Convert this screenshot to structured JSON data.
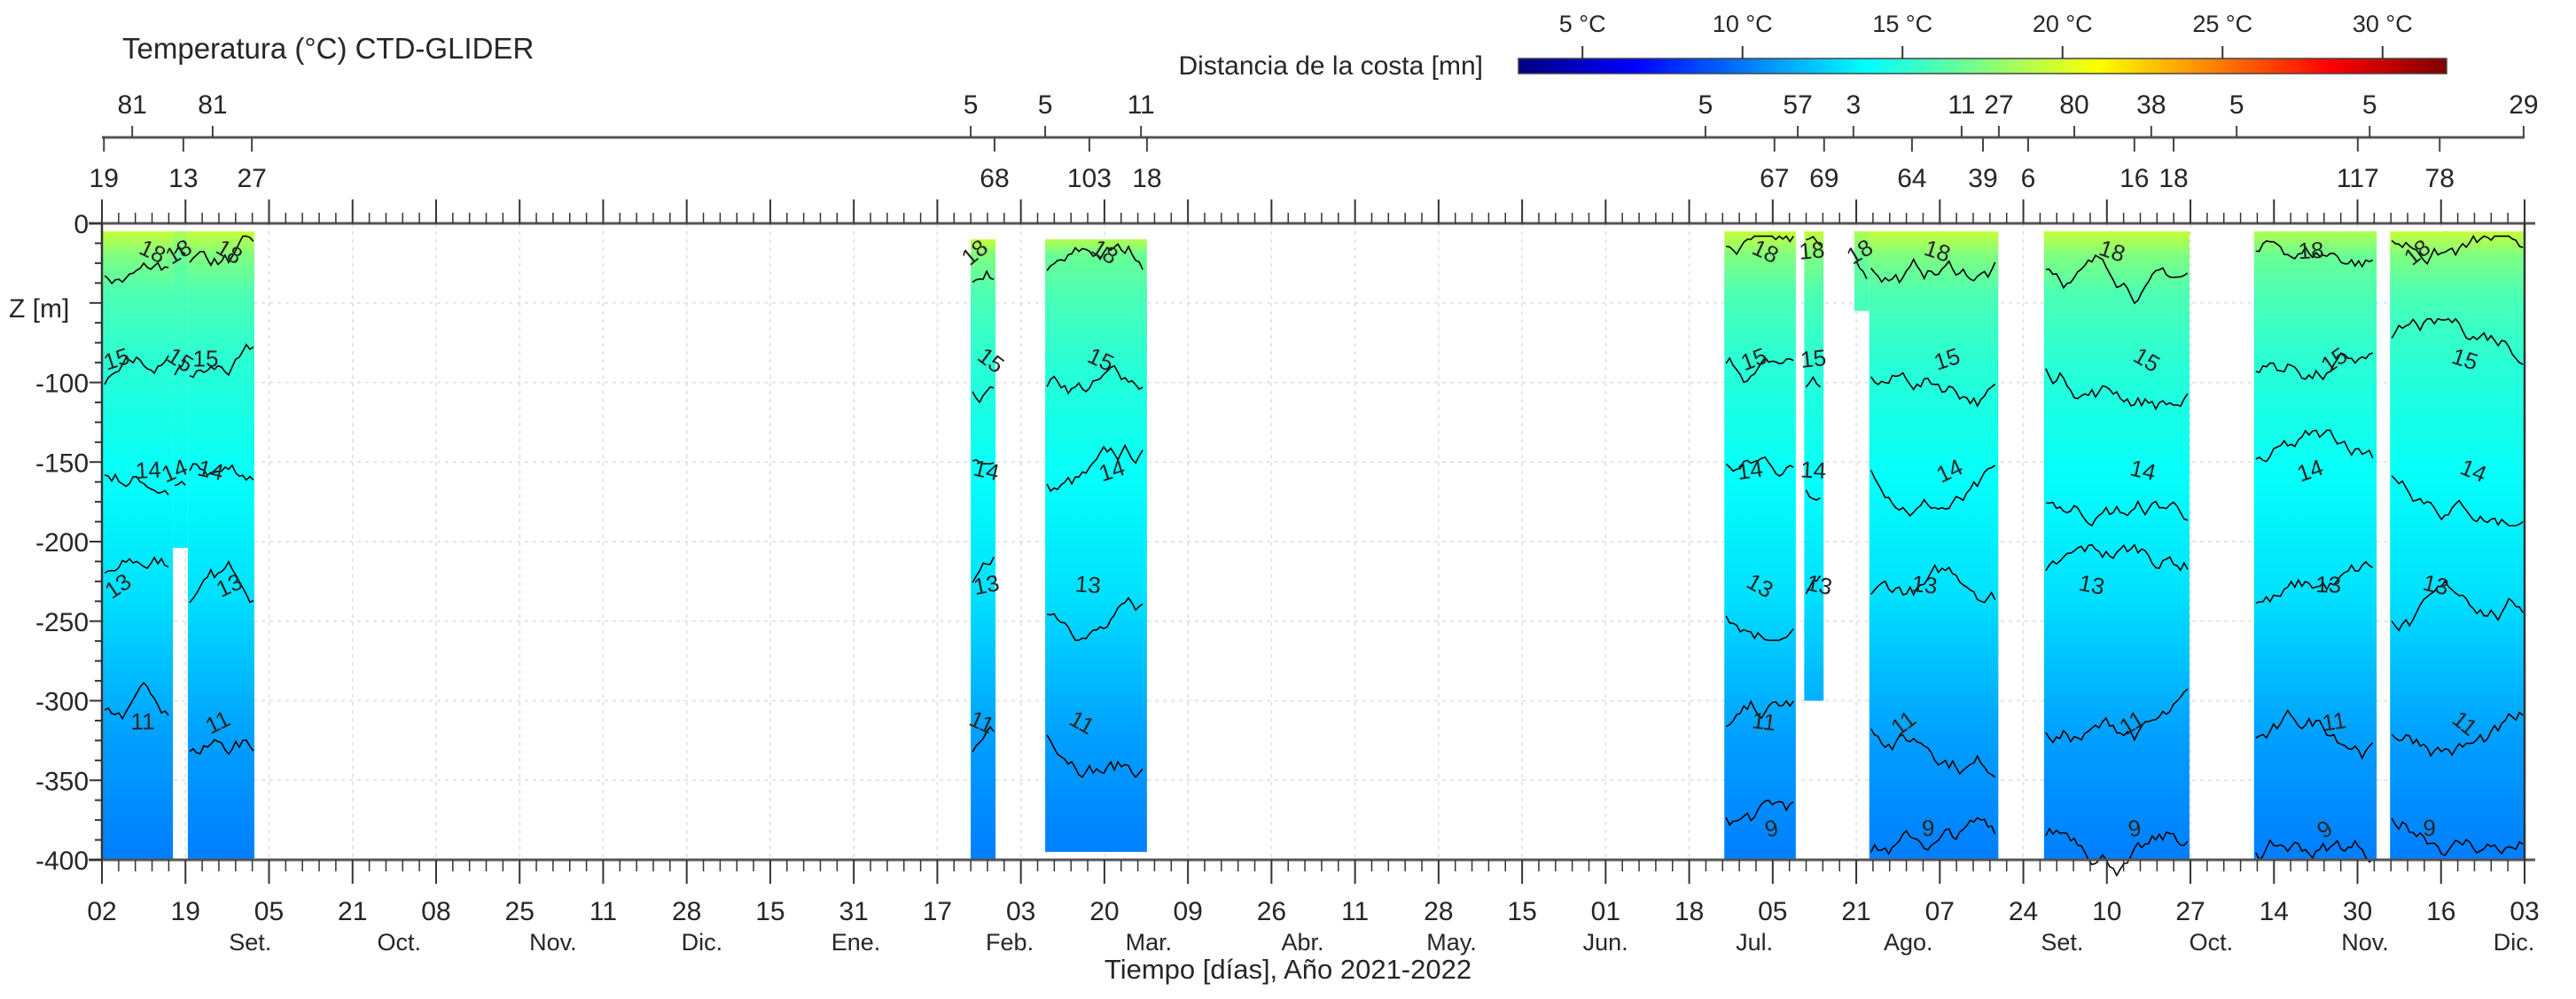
{
  "chart_data": {
    "type": "heatmap",
    "title": "Temperatura (°C) CTD-GLIDER",
    "xlabel": "Tiempo [días], Año 2021-2022",
    "ylabel": "Z [m]",
    "ylim": [
      -400,
      0
    ],
    "yticks": [
      "0",
      "-100",
      "-150",
      "-200",
      "-250",
      "-300",
      "-350",
      "-400"
    ],
    "yticks_values": [
      0,
      -100,
      -150,
      -200,
      -250,
      -300,
      -350,
      -400
    ],
    "x_start_date": "2021-08-02",
    "x_range_days": [
      0,
      488
    ],
    "date_ticks": [
      "02",
      "19",
      "05",
      "21",
      "08",
      "25",
      "11",
      "28",
      "15",
      "31",
      "17",
      "03",
      "20",
      "09",
      "26",
      "11",
      "28",
      "15",
      "01",
      "18",
      "05",
      "21",
      "07",
      "24",
      "10",
      "27",
      "14",
      "30",
      "16",
      "03"
    ],
    "month_labels": [
      {
        "label": "Set.",
        "day": 32
      },
      {
        "label": "Oct.",
        "day": 62
      },
      {
        "label": "Nov.",
        "day": 93
      },
      {
        "label": "Dic.",
        "day": 123
      },
      {
        "label": "Ene.",
        "day": 154
      },
      {
        "label": "Feb.",
        "day": 185
      },
      {
        "label": "Mar.",
        "day": 213
      },
      {
        "label": "Abr.",
        "day": 244
      },
      {
        "label": "May.",
        "day": 274
      },
      {
        "label": "Jun.",
        "day": 305
      },
      {
        "label": "Jul.",
        "day": 335
      },
      {
        "label": "Ago.",
        "day": 366
      },
      {
        "label": "Set.",
        "day": 397
      },
      {
        "label": "Oct.",
        "day": 427
      },
      {
        "label": "Nov.",
        "day": 458
      },
      {
        "label": "Dic.",
        "day": 488
      }
    ],
    "colorbar": {
      "label": "Distancia de la costa [mn]",
      "range": [
        3,
        32
      ],
      "colormap": "jet",
      "ticks": [
        "5 °C",
        "10 °C",
        "15 °C",
        "20 °C",
        "25 °C",
        "30 °C"
      ],
      "tick_values": [
        5,
        10,
        15,
        20,
        25,
        30
      ]
    },
    "distance_upper": [
      {
        "label": "81",
        "day": 6.1
      },
      {
        "label": "81",
        "day": 22.3
      },
      {
        "label": "5",
        "day": 175.0
      },
      {
        "label": "5",
        "day": 190.0
      },
      {
        "label": "11",
        "day": 209.3
      },
      {
        "label": "5",
        "day": 323.0
      },
      {
        "label": "57",
        "day": 341.6
      },
      {
        "label": "3",
        "day": 352.8
      },
      {
        "label": "11",
        "day": 374.6
      },
      {
        "label": "27",
        "day": 382.1
      },
      {
        "label": "80",
        "day": 397.3
      },
      {
        "label": "38",
        "day": 412.8
      },
      {
        "label": "5",
        "day": 430.0
      },
      {
        "label": "5",
        "day": 456.8
      },
      {
        "label": "29",
        "day": 487.8
      }
    ],
    "distance_lower": [
      {
        "label": "19",
        "day": 0.4
      },
      {
        "label": "13",
        "day": 16.4
      },
      {
        "label": "27",
        "day": 30.2
      },
      {
        "label": "68",
        "day": 179.8
      },
      {
        "label": "103",
        "day": 198.9
      },
      {
        "label": "18",
        "day": 210.5
      },
      {
        "label": "67",
        "day": 336.9
      },
      {
        "label": "69",
        "day": 346.9
      },
      {
        "label": "64",
        "day": 364.6
      },
      {
        "label": "39",
        "day": 378.9
      },
      {
        "label": "6",
        "day": 388.0
      },
      {
        "label": "16",
        "day": 409.4
      },
      {
        "label": "18",
        "day": 417.3
      },
      {
        "label": "117",
        "day": 454.4
      },
      {
        "label": "78",
        "day": 470.9
      }
    ],
    "profile_temperature": {
      "depth": [
        -5,
        -20,
        -45,
        -90,
        -160,
        -235,
        -320,
        -400
      ],
      "temp": [
        19.5,
        17.5,
        16.0,
        15.0,
        14.0,
        13.0,
        11.2,
        10.2
      ]
    },
    "segments": [
      {
        "start": 0.2,
        "end": 14.3,
        "depth_top": -5,
        "depth_bottom": -400
      },
      {
        "start": 14.3,
        "end": 17.3,
        "depth_top": -5,
        "depth_bottom": -204
      },
      {
        "start": 17.3,
        "end": 30.7,
        "depth_top": -5,
        "depth_bottom": -400
      },
      {
        "start": 175.0,
        "end": 180.0,
        "depth_top": -10,
        "depth_bottom": -400
      },
      {
        "start": 190.0,
        "end": 210.5,
        "depth_top": -10,
        "depth_bottom": -395
      },
      {
        "start": 326.8,
        "end": 341.2,
        "depth_top": -5,
        "depth_bottom": -400
      },
      {
        "start": 342.9,
        "end": 346.8,
        "depth_top": -5,
        "depth_bottom": -300
      },
      {
        "start": 353.0,
        "end": 356.0,
        "depth_top": -5,
        "depth_bottom": -55
      },
      {
        "start": 356.0,
        "end": 382.0,
        "depth_top": -5,
        "depth_bottom": -400
      },
      {
        "start": 391.2,
        "end": 420.5,
        "depth_top": -5,
        "depth_bottom": -400
      },
      {
        "start": 433.5,
        "end": 458.2,
        "depth_top": -5,
        "depth_bottom": -400
      },
      {
        "start": 460.9,
        "end": 488.0,
        "depth_top": -5,
        "depth_bottom": -400
      }
    ],
    "contours": [
      {
        "level": "18",
        "mean_depth": -22
      },
      {
        "level": "15",
        "mean_depth": -90
      },
      {
        "level": "14",
        "mean_depth": -160
      },
      {
        "level": "13",
        "mean_depth": -232
      },
      {
        "level": "11",
        "mean_depth": -318
      },
      {
        "level": "9",
        "mean_depth": -385
      }
    ]
  }
}
